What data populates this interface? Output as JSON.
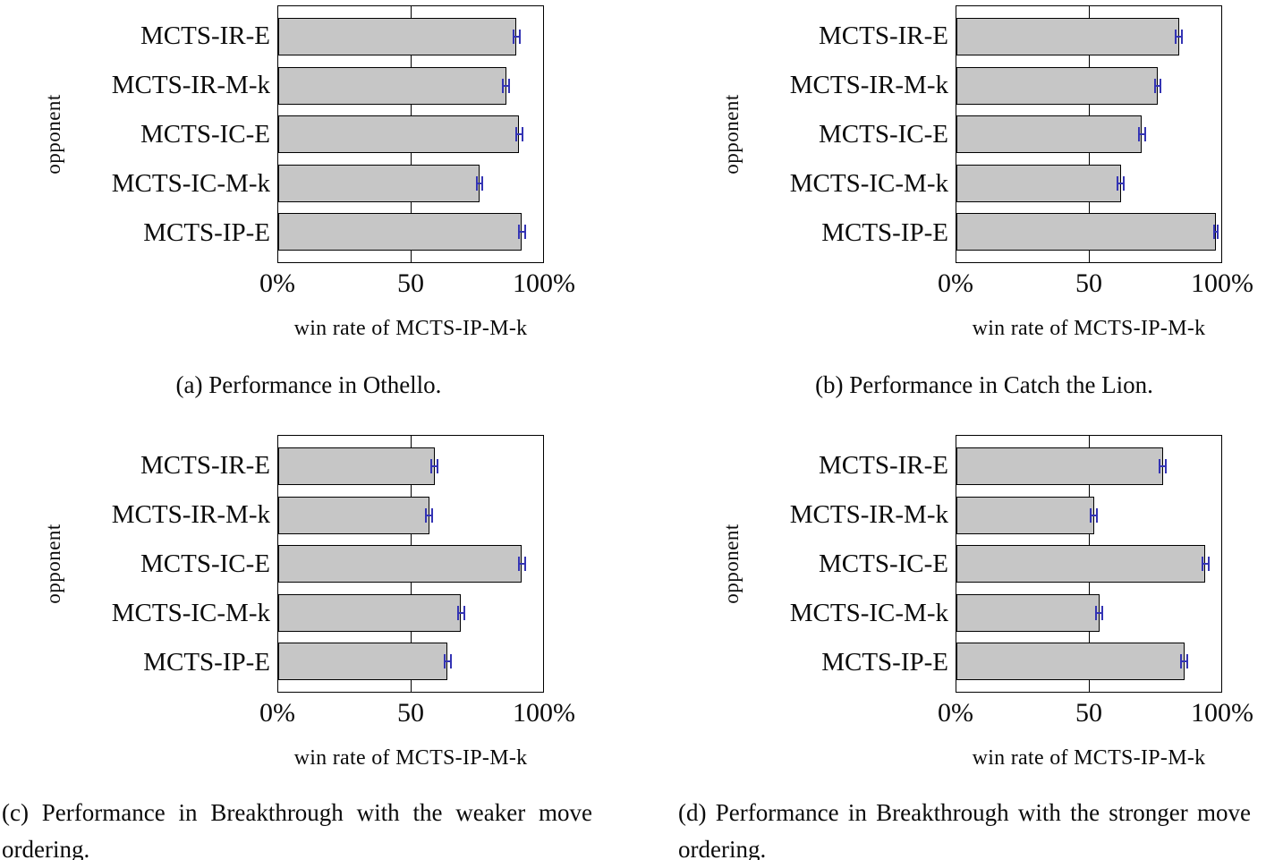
{
  "figure": {
    "y_axis_title": "opponent",
    "x_axis_title": "win rate of MCTS-IP-M-k"
  },
  "chart_data": [
    {
      "id": "a",
      "type": "bar",
      "orientation": "horizontal",
      "title": "(a) Performance in Othello.",
      "ylabel": "opponent",
      "xlabel": "win rate of MCTS-IP-M-k",
      "xticks": [
        "0%",
        "50",
        "100%"
      ],
      "xlim": [
        0,
        100
      ],
      "gridline_at": 50,
      "legend": "none",
      "categories": [
        "MCTS-IR-E",
        "MCTS-IR-M-k",
        "MCTS-IC-E",
        "MCTS-IC-M-k",
        "MCTS-IP-E"
      ],
      "values": [
        90,
        86,
        91,
        76,
        92
      ],
      "errors": [
        1.5,
        1.5,
        1.5,
        1.5,
        1.5
      ],
      "bar_color": "#c6c6c6",
      "bar_border_color": "#000000",
      "error_color": "#3434b4"
    },
    {
      "id": "b",
      "type": "bar",
      "orientation": "horizontal",
      "title": "(b) Performance in Catch the Lion.",
      "ylabel": "opponent",
      "xlabel": "win rate of MCTS-IP-M-k",
      "xticks": [
        "0%",
        "50",
        "100%"
      ],
      "xlim": [
        0,
        100
      ],
      "gridline_at": 50,
      "legend": "none",
      "categories": [
        "MCTS-IR-E",
        "MCTS-IR-M-k",
        "MCTS-IC-E",
        "MCTS-IC-M-k",
        "MCTS-IP-E"
      ],
      "values": [
        84,
        76,
        70,
        62,
        98
      ],
      "errors": [
        1.5,
        1.5,
        1.5,
        1.5,
        1.0
      ],
      "bar_color": "#c6c6c6",
      "bar_border_color": "#000000",
      "error_color": "#3434b4"
    },
    {
      "id": "c",
      "type": "bar",
      "orientation": "horizontal",
      "title": "(c) Performance in Breakthrough with the weaker move ordering.",
      "ylabel": "opponent",
      "xlabel": "win rate of MCTS-IP-M-k",
      "xticks": [
        "0%",
        "50",
        "100%"
      ],
      "xlim": [
        0,
        100
      ],
      "gridline_at": 50,
      "legend": "none",
      "categories": [
        "MCTS-IR-E",
        "MCTS-IR-M-k",
        "MCTS-IC-E",
        "MCTS-IC-M-k",
        "MCTS-IP-E"
      ],
      "values": [
        59,
        57,
        92,
        69,
        64
      ],
      "errors": [
        1.5,
        1.5,
        1.5,
        1.5,
        1.5
      ],
      "bar_color": "#c6c6c6",
      "bar_border_color": "#000000",
      "error_color": "#3434b4"
    },
    {
      "id": "d",
      "type": "bar",
      "orientation": "horizontal",
      "title": "(d) Performance in Breakthrough with the stronger move ordering.",
      "ylabel": "opponent",
      "xlabel": "win rate of MCTS-IP-M-k",
      "xticks": [
        "0%",
        "50",
        "100%"
      ],
      "xlim": [
        0,
        100
      ],
      "gridline_at": 50,
      "legend": "none",
      "categories": [
        "MCTS-IR-E",
        "MCTS-IR-M-k",
        "MCTS-IC-E",
        "MCTS-IC-M-k",
        "MCTS-IP-E"
      ],
      "values": [
        78,
        52,
        94,
        54,
        86
      ],
      "errors": [
        1.5,
        1.5,
        1.5,
        1.5,
        1.5
      ],
      "bar_color": "#c6c6c6",
      "bar_border_color": "#000000",
      "error_color": "#3434b4"
    }
  ]
}
